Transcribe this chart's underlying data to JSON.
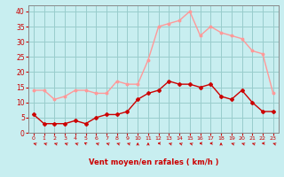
{
  "x": [
    0,
    1,
    2,
    3,
    4,
    5,
    6,
    7,
    8,
    9,
    10,
    11,
    12,
    13,
    14,
    15,
    16,
    17,
    18,
    19,
    20,
    21,
    22,
    23
  ],
  "wind_avg": [
    6,
    3,
    3,
    3,
    4,
    3,
    5,
    6,
    6,
    7,
    11,
    13,
    14,
    17,
    16,
    16,
    15,
    16,
    12,
    11,
    14,
    10,
    7,
    7
  ],
  "wind_gust": [
    14,
    14,
    11,
    12,
    14,
    14,
    13,
    13,
    17,
    16,
    16,
    24,
    35,
    36,
    37,
    40,
    32,
    35,
    33,
    32,
    31,
    27,
    26,
    13
  ],
  "avg_color": "#cc0000",
  "gust_color": "#ff9999",
  "bg_color": "#c8eef0",
  "grid_color": "#99cccc",
  "xlabel": "Vent moyen/en rafales ( km/h )",
  "xlabel_color": "#cc0000",
  "tick_color": "#cc0000",
  "axis_color": "#888888",
  "ylim": [
    0,
    42
  ],
  "yticks": [
    0,
    5,
    10,
    15,
    20,
    25,
    30,
    35,
    40
  ],
  "arrow_angles_deg": [
    225,
    225,
    225,
    225,
    225,
    210,
    225,
    225,
    225,
    225,
    180,
    180,
    270,
    225,
    225,
    225,
    270,
    270,
    180,
    225,
    225,
    225,
    270,
    225
  ]
}
